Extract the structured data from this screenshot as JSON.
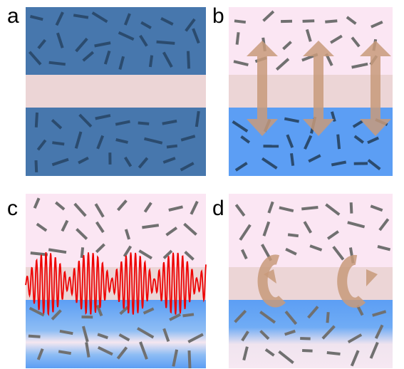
{
  "panels": [
    {
      "label": "a"
    },
    {
      "label": "b"
    },
    {
      "label": "c"
    },
    {
      "label": "d"
    }
  ],
  "colors": {
    "dark_blue": "#4777ad",
    "light_blue": "#5c9ef4",
    "pink_phase": "#fbe6f3",
    "interface_band": "#ecd5d6",
    "rod_dark": "#2b4b6e",
    "rod_gray": "#707070",
    "arrow": "#c89a7a",
    "wave": "#ee0000"
  },
  "icons": [
    "up-down-arrow-icon",
    "circular-arrow-icon",
    "oscillating-wave-icon"
  ]
}
